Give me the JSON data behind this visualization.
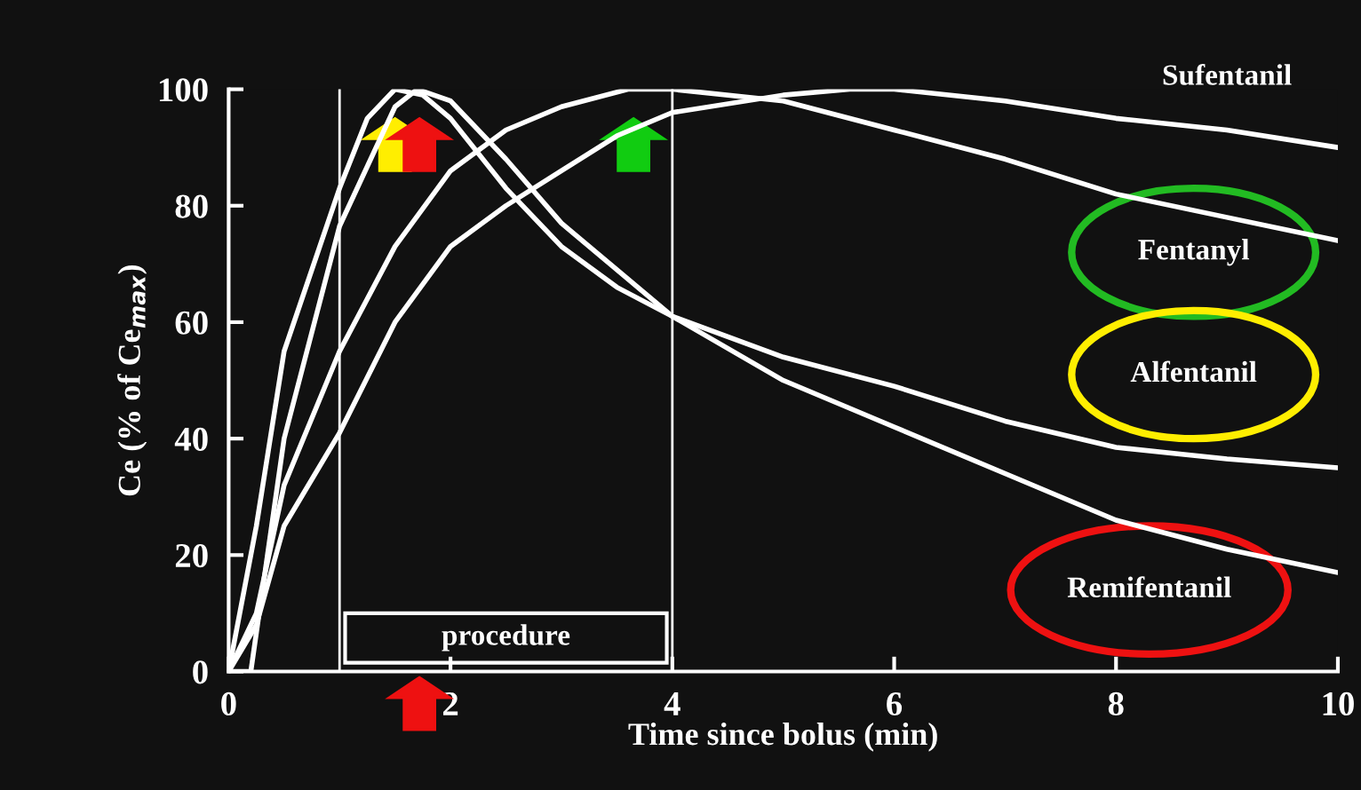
{
  "chart_data": {
    "type": "line",
    "xlabel": "Time since bolus (min)",
    "ylabel": "Ce (% of Ce$_{max}$)",
    "xlim": [
      0,
      10
    ],
    "ylim": [
      0,
      100
    ],
    "xticks": [
      0,
      2,
      4,
      6,
      8,
      10
    ],
    "yticks": [
      0,
      20,
      40,
      60,
      80,
      100
    ],
    "grid": false,
    "legend": false,
    "marker": "none",
    "line_style": "solid",
    "ref_lines": [
      {
        "axis": "x",
        "value": 1
      },
      {
        "axis": "x",
        "value": 4
      }
    ],
    "annotations": [
      "procedure"
    ],
    "series": [
      {
        "name": "Sufentanil",
        "color": "#ffffff",
        "x": [
          0,
          0.25,
          0.5,
          1,
          1.5,
          2,
          2.5,
          3,
          3.5,
          4,
          5,
          5.6,
          6,
          7,
          8,
          9,
          10
        ],
        "values": [
          0,
          8,
          25,
          41,
          60,
          73,
          80,
          86,
          92,
          96,
          99,
          100,
          100,
          98,
          95,
          93,
          90
        ]
      },
      {
        "name": "Fentanyl",
        "color": "#ffffff",
        "x": [
          0,
          0.25,
          0.5,
          1,
          1.5,
          2,
          2.5,
          3,
          3.6,
          4,
          5,
          6,
          7,
          8,
          9,
          10
        ],
        "values": [
          0,
          10,
          32,
          55,
          73,
          86,
          93,
          97,
          100,
          100,
          98,
          93,
          88,
          82,
          78,
          74
        ]
      },
      {
        "name": "Alfentanil",
        "color": "#ffffff",
        "x": [
          0,
          0.25,
          0.5,
          1,
          1.25,
          1.5,
          1.75,
          2,
          2.5,
          3,
          3.5,
          4,
          5,
          6,
          7,
          8,
          9,
          10
        ],
        "values": [
          0,
          25,
          55,
          83,
          95,
          100,
          99,
          95,
          83,
          73,
          66,
          61,
          54,
          49,
          43,
          38.5,
          36.5,
          35
        ]
      },
      {
        "name": "Remifentanil",
        "color": "#ffffff",
        "x": [
          0,
          0.2,
          0.5,
          1,
          1.5,
          1.7,
          2,
          2.5,
          3,
          3.5,
          4,
          5,
          6,
          7,
          8,
          9,
          10
        ],
        "values": [
          0,
          0,
          40,
          76.5,
          97,
          100,
          98,
          88,
          77,
          69,
          61,
          50,
          42,
          34,
          26,
          21,
          17
        ]
      }
    ]
  }
}
